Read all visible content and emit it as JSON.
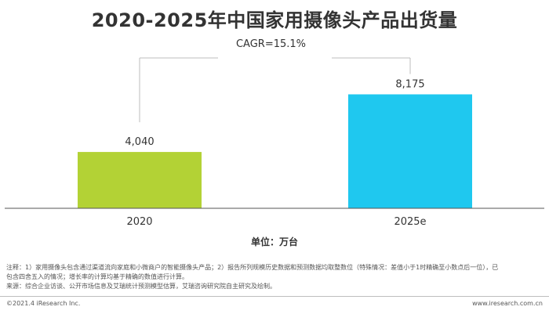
{
  "chart_data": {
    "type": "bar",
    "title": "2020-2025年中国家用摄像头产品出货量",
    "categories": [
      "2020",
      "2025e"
    ],
    "values": [
      4040,
      8175
    ],
    "value_labels": [
      "4,040",
      "8,175"
    ],
    "colors": [
      "#b3d235",
      "#1fc8ef"
    ],
    "ylim": [
      0,
      10000
    ],
    "annotation": "CAGR=15.1%",
    "unit": "单位：万台",
    "grid": false,
    "legend": "none"
  },
  "notes": {
    "line1": "注释：1）家用摄像头包含通过渠道流向家庭和小微商户的智能摄像头产品；2）报告所列规模历史数据和预测数据均取整数位（特殊情况：差值小于1时精确至小数点后一位），已",
    "line2": "包含四舍五入的情况；增长率的计算均基于精确的数值进行计算。",
    "line3": "来源：综合企业访谈、公开市场信息及艾瑞统计预测模型估算，艾瑞咨询研究院自主研究及绘制。"
  },
  "footer": {
    "left": "©2021.4 iResearch Inc.",
    "right": "www.iresearch.com.cn"
  }
}
